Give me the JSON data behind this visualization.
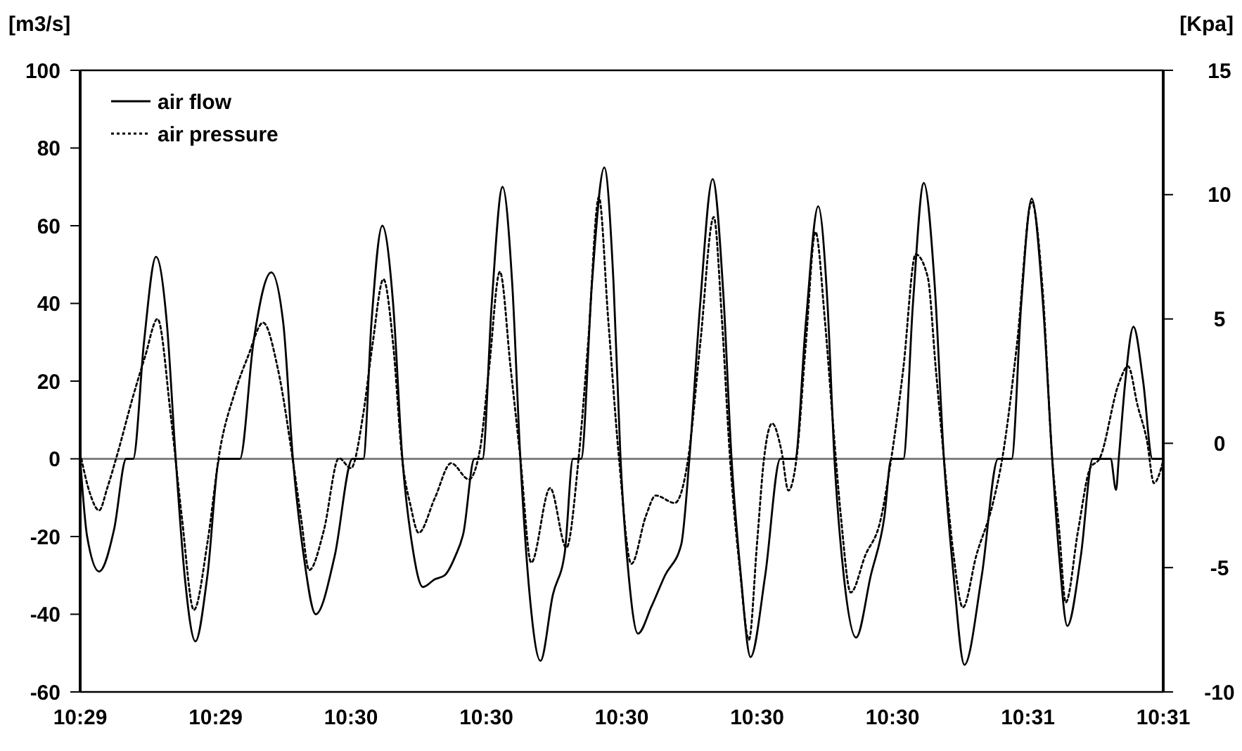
{
  "chart_data": {
    "type": "line",
    "ylabel": "[m3/s]",
    "y2label": "[Kpa]",
    "xlim": [
      10.486,
      10.514
    ],
    "xticks": [
      {
        "value": 10.486,
        "label": "10:29"
      },
      {
        "value": 10.4895,
        "label": "10:29"
      },
      {
        "value": 10.493,
        "label": "10:30"
      },
      {
        "value": 10.4965,
        "label": "10:30"
      },
      {
        "value": 10.5,
        "label": "10:30"
      },
      {
        "value": 10.5035,
        "label": "10:30"
      },
      {
        "value": 10.507,
        "label": "10:30"
      },
      {
        "value": 10.5105,
        "label": "10:31"
      },
      {
        "value": 10.514,
        "label": "10:31"
      }
    ],
    "ylim": [
      -60,
      100
    ],
    "yticks": [
      -60,
      -40,
      -20,
      0,
      20,
      40,
      60,
      80,
      100
    ],
    "y2lim": [
      -10,
      15
    ],
    "y2ticks": [
      -10,
      -5,
      0,
      5,
      10,
      15
    ],
    "grid": false,
    "legend": "top left",
    "ref_lines": [
      {
        "axis": "y",
        "value": 0,
        "color": "#808080"
      }
    ],
    "series": [
      {
        "name": "air flow",
        "color": "#000000",
        "line_style": "solid",
        "x": [
          10.486,
          10.48618,
          10.48649,
          10.48688,
          10.48719,
          10.48737,
          10.48765,
          10.48796,
          10.48824,
          10.48847,
          10.4887,
          10.48898,
          10.48929,
          10.48961,
          10.49013,
          10.49048,
          10.49094,
          10.49125,
          10.4915,
          10.49178,
          10.49209,
          10.49258,
          10.49304,
          10.49332,
          10.49353,
          10.49381,
          10.49409,
          10.49433,
          10.49458,
          10.49486,
          10.49517,
          10.49542,
          10.4957,
          10.49591,
          10.49619,
          10.4964,
          10.49664,
          10.49692,
          10.49717,
          10.49738,
          10.49762,
          10.4979,
          10.49822,
          10.49853,
          10.49874,
          10.49895,
          10.49923,
          10.49955,
          10.49979,
          10.49997,
          10.50018,
          10.50042,
          10.50077,
          10.50112,
          10.50154,
          10.50175,
          10.50203,
          10.50235,
          10.50263,
          10.50284,
          10.50308,
          10.50333,
          10.50371,
          10.5041,
          10.50448,
          10.50476,
          10.50508,
          10.50532,
          10.5055,
          10.50574,
          10.50606,
          10.50644,
          10.50679,
          10.50697,
          10.50728,
          10.50753,
          10.50781,
          10.50809,
          10.50833,
          10.50858,
          10.50886,
          10.50931,
          10.50973,
          10.51008,
          10.51033,
          10.5106,
          10.51089,
          10.51113,
          10.51131,
          10.51152,
          10.51187,
          10.51218,
          10.51264,
          10.51278,
          10.51285,
          10.51302,
          10.51323,
          10.51348,
          10.51372,
          10.514
        ],
        "values": [
          0,
          -20,
          -29,
          -18,
          0,
          0,
          30,
          52,
          35,
          0,
          -30,
          -47,
          -30,
          0,
          0,
          30,
          48,
          35,
          0,
          -25,
          -40,
          -25,
          0,
          0,
          35,
          60,
          40,
          0,
          -22,
          -33,
          -31,
          -30,
          -25,
          -19,
          0,
          0,
          40,
          70,
          45,
          0,
          -35,
          -52,
          -35,
          -24,
          0,
          0,
          45,
          75,
          45,
          0,
          -30,
          -45,
          -38,
          -30,
          -22,
          0,
          40,
          72,
          42,
          0,
          -30,
          -51,
          -30,
          0,
          0,
          35,
          65,
          40,
          0,
          -30,
          -46,
          -30,
          -15,
          0,
          0,
          40,
          71,
          45,
          0,
          -30,
          -53,
          -30,
          0,
          0,
          40,
          67,
          40,
          0,
          -25,
          -43,
          -25,
          0,
          0,
          -8,
          0,
          20,
          34,
          20,
          0,
          0
        ]
      },
      {
        "name": "air pressure",
        "color": "#000000",
        "line_style": "dotted",
        "axis": "y2",
        "x": [
          10.486,
          10.48625,
          10.48649,
          10.4867,
          10.48695,
          10.48737,
          10.48768,
          10.488,
          10.48835,
          10.48863,
          10.48894,
          10.48929,
          10.48961,
          10.48999,
          10.49034,
          10.49073,
          10.49111,
          10.4915,
          10.49171,
          10.49192,
          10.4923,
          10.49269,
          10.493,
          10.49332,
          10.49356,
          10.49384,
          10.49409,
          10.49433,
          10.49454,
          10.49475,
          10.49517,
          10.49559,
          10.49605,
          10.49633,
          10.49657,
          10.49685,
          10.49713,
          10.49738,
          10.49766,
          10.49815,
          10.49857,
          10.49888,
          10.49913,
          10.49941,
          10.49965,
          10.49993,
          10.50025,
          10.50063,
          10.50088,
          10.50137,
          10.50172,
          10.50203,
          10.50238,
          10.50259,
          10.5028,
          10.50305,
          10.50329,
          10.5035,
          10.50368,
          10.50389,
          10.50413,
          10.50431,
          10.50452,
          10.50476,
          10.50501,
          10.50525,
          10.50546,
          10.50567,
          10.50592,
          10.5063,
          10.50669,
          10.50697,
          10.50728,
          10.5076,
          10.50791,
          10.50812,
          10.50833,
          10.50858,
          10.50882,
          10.50917,
          10.50959,
          10.50984,
          10.51022,
          10.5106,
          10.51089,
          10.51113,
          10.51131,
          10.51148,
          10.5118,
          10.51211,
          10.51236,
          10.51285,
          10.51309,
          10.51334,
          10.51358,
          10.51376,
          10.514
        ],
        "values": [
          -0.4,
          -2,
          -2.7,
          -1.8,
          -0.5,
          1.9,
          3.5,
          5.0,
          1.0,
          -3,
          -6.7,
          -4,
          -0.3,
          2,
          3.5,
          4.85,
          3,
          -0.7,
          -3,
          -5.1,
          -3.5,
          -0.6,
          -1.0,
          1.2,
          4,
          6.6,
          4,
          -0.7,
          -2.5,
          -3.6,
          -2.2,
          -0.8,
          -1.45,
          -0.3,
          3,
          6.9,
          3,
          -0.6,
          -4.8,
          -1.8,
          -4.2,
          -0.7,
          4,
          9.9,
          5,
          -0.6,
          -4.85,
          -2.9,
          -2.1,
          -2.4,
          -0.6,
          4,
          9.1,
          5,
          -0.6,
          -5,
          -7.9,
          -4,
          -0.6,
          0.8,
          -0.3,
          -1.9,
          -0.6,
          4,
          8.5,
          5,
          0.85,
          -3,
          -6.0,
          -4.5,
          -3.1,
          -0.6,
          3,
          7.6,
          6.7,
          3,
          -0.6,
          -4.5,
          -6.6,
          -4.5,
          -2.45,
          -0.6,
          4,
          9.7,
          6,
          -0.6,
          -3.5,
          -6.4,
          -3.5,
          -1.0,
          -0.6,
          2.4,
          3.1,
          1.5,
          0.1,
          -1.6,
          -0.7
        ]
      }
    ]
  }
}
